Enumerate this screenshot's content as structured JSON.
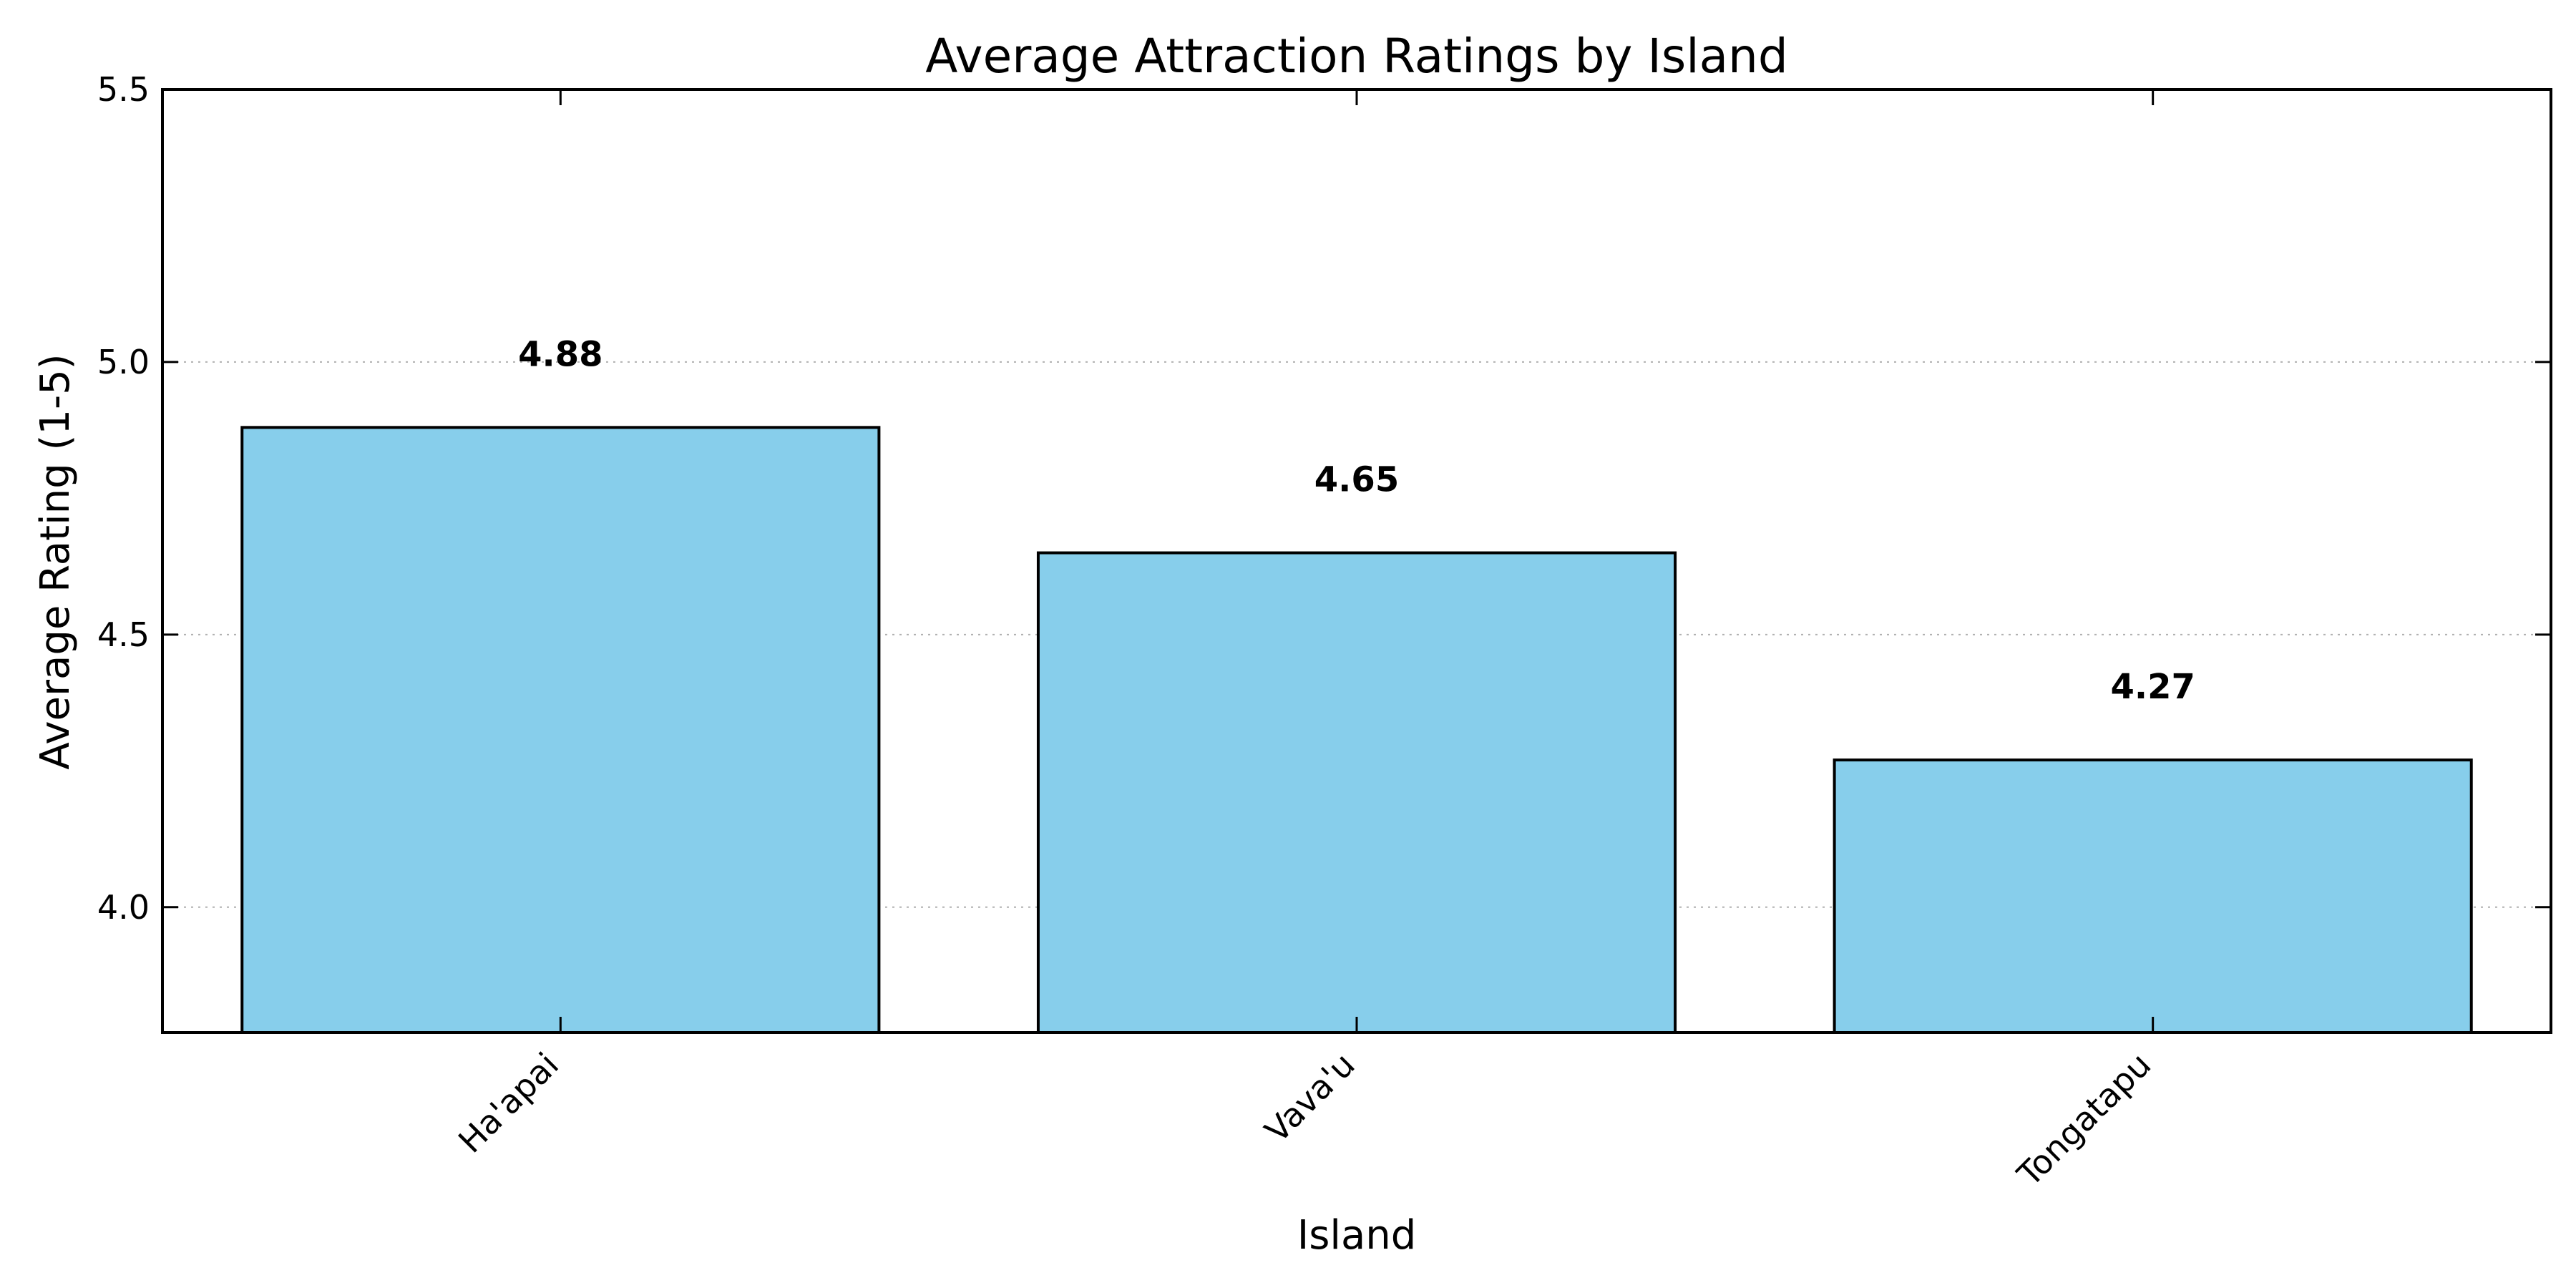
{
  "chart_data": {
    "type": "bar",
    "title": "Average Attraction Ratings by Island",
    "xlabel": "Island",
    "ylabel": "Average Rating (1-5)",
    "categories": [
      "Ha'apai",
      "Vava'u",
      "Tongatapu"
    ],
    "values": [
      4.88,
      4.65,
      4.27
    ],
    "data_labels": [
      "4.88",
      "4.65",
      "4.27"
    ],
    "ylim": [
      3.77,
      5.5
    ],
    "yticks": [
      4.0,
      4.5,
      5.0,
      5.5
    ],
    "ytick_labels": [
      "4.0",
      "4.5",
      "5.0",
      "5.5"
    ],
    "grid": "y-dotted",
    "bar_color": "#87CEEB",
    "edge_color": "#000000",
    "legend": "none"
  }
}
